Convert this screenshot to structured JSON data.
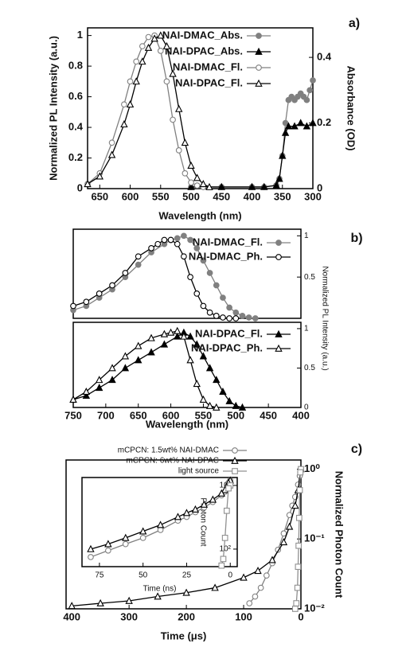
{
  "chart_data": [
    {
      "type": "line",
      "panel_label": "a)",
      "x_label": "Wavelength (nm)",
      "y_label": "Normalized PL Intensity (a.u.)",
      "y2_label": "Absorbance (OD)",
      "xlim": [
        670,
        300
      ],
      "xticks": [
        650,
        600,
        550,
        500,
        450,
        400,
        350,
        300
      ],
      "ylim": [
        0,
        1.05
      ],
      "yticks": [
        0.0,
        0.2,
        0.4,
        0.6,
        0.8,
        1.0
      ],
      "y2lim": [
        0,
        0.49
      ],
      "y2ticks": [
        0.0,
        0.2,
        0.4
      ],
      "series": [
        {
          "name": "NAI-DMAC_Abs.",
          "axis": "y2",
          "color": "#808080",
          "marker": "circle",
          "filled": true,
          "x": [
            300,
            305,
            310,
            315,
            320,
            325,
            330,
            335,
            340,
            345,
            350,
            355,
            360,
            380,
            400,
            450,
            500
          ],
          "values": [
            0.33,
            0.3,
            0.27,
            0.28,
            0.29,
            0.28,
            0.27,
            0.28,
            0.27,
            0.2,
            0.1,
            0.03,
            0.01,
            0.005,
            0.005,
            0.005,
            0.005
          ]
        },
        {
          "name": "NAI-DPAC_Abs.",
          "axis": "y2",
          "color": "#000000",
          "marker": "triangle",
          "filled": true,
          "x": [
            300,
            310,
            320,
            330,
            340,
            345,
            350,
            355,
            360,
            380,
            400,
            450,
            500
          ],
          "values": [
            0.2,
            0.19,
            0.2,
            0.19,
            0.19,
            0.17,
            0.1,
            0.03,
            0.01,
            0.005,
            0.005,
            0.005,
            0.005
          ]
        },
        {
          "name": "NAI-DMAC_Fl.",
          "color": "#808080",
          "marker": "circle",
          "filled": false,
          "x": [
            670,
            650,
            630,
            610,
            600,
            590,
            580,
            570,
            560,
            550,
            540,
            530,
            520,
            510,
            500,
            490,
            480
          ],
          "values": [
            0.03,
            0.1,
            0.3,
            0.55,
            0.7,
            0.83,
            0.93,
            0.99,
            1.0,
            0.9,
            0.7,
            0.45,
            0.25,
            0.1,
            0.04,
            0.02,
            0.01
          ]
        },
        {
          "name": "NAI-DPAC_Fl.",
          "color": "#000000",
          "marker": "triangle",
          "filled": false,
          "x": [
            670,
            650,
            630,
            610,
            600,
            590,
            580,
            570,
            560,
            550,
            540,
            530,
            520,
            510,
            500,
            490,
            480,
            470
          ],
          "values": [
            0.03,
            0.08,
            0.22,
            0.42,
            0.55,
            0.7,
            0.83,
            0.92,
            0.98,
            1.0,
            0.93,
            0.75,
            0.52,
            0.3,
            0.15,
            0.07,
            0.03,
            0.01
          ]
        }
      ]
    },
    {
      "type": "line",
      "panel_label": "b)",
      "y_label": "Normalized PL Intensity (a.u.)",
      "xlim": [
        750,
        400
      ],
      "ylim": [
        0,
        1.08
      ],
      "yticks": [
        0.5,
        1.0
      ],
      "series": [
        {
          "name": "NAI-DMAC_Fl.",
          "color": "#808080",
          "marker": "circle",
          "filled": true,
          "x": [
            750,
            730,
            710,
            690,
            670,
            650,
            630,
            610,
            600,
            590,
            580,
            570,
            560,
            550,
            540,
            530,
            520,
            510,
            500,
            490,
            480,
            470
          ],
          "values": [
            0.1,
            0.15,
            0.25,
            0.35,
            0.5,
            0.65,
            0.8,
            0.9,
            0.95,
            0.97,
            1.0,
            0.95,
            0.85,
            0.7,
            0.55,
            0.4,
            0.25,
            0.13,
            0.07,
            0.03,
            0.01,
            0.0
          ]
        },
        {
          "name": "NAI-DMAC_Ph.",
          "color": "#000000",
          "marker": "circle",
          "filled": false,
          "x": [
            750,
            730,
            710,
            690,
            670,
            650,
            630,
            620,
            610,
            600,
            590,
            580,
            570,
            560,
            550,
            540,
            530,
            520,
            510,
            500
          ],
          "values": [
            0.15,
            0.2,
            0.3,
            0.4,
            0.55,
            0.75,
            0.85,
            0.9,
            0.95,
            0.95,
            0.9,
            0.75,
            0.5,
            0.3,
            0.15,
            0.07,
            0.03,
            0.01,
            0.0,
            0.0
          ]
        }
      ]
    },
    {
      "type": "line",
      "x_label": "Wavelength (nm)",
      "xlim": [
        750,
        400
      ],
      "xticks": [
        750,
        700,
        650,
        600,
        550,
        500,
        450,
        400
      ],
      "ylim": [
        0,
        1.08
      ],
      "yticks": [
        0.0,
        0.5,
        1.0
      ],
      "series": [
        {
          "name": "NAI-DPAC_Fl.",
          "color": "#000000",
          "marker": "triangle",
          "filled": true,
          "x": [
            750,
            730,
            710,
            690,
            670,
            650,
            630,
            610,
            590,
            580,
            570,
            560,
            550,
            540,
            530,
            520,
            510,
            500,
            490
          ],
          "values": [
            0.1,
            0.15,
            0.25,
            0.35,
            0.5,
            0.6,
            0.7,
            0.8,
            0.9,
            0.95,
            0.9,
            0.8,
            0.65,
            0.5,
            0.35,
            0.2,
            0.08,
            0.02,
            0.0
          ]
        },
        {
          "name": "NAI-DPAC_Ph.",
          "color": "#000000",
          "marker": "triangle",
          "filled": false,
          "x": [
            750,
            730,
            710,
            690,
            670,
            650,
            630,
            610,
            600,
            590,
            580,
            570,
            560,
            550,
            540,
            530
          ],
          "values": [
            0.1,
            0.2,
            0.35,
            0.5,
            0.65,
            0.78,
            0.88,
            0.93,
            0.95,
            0.97,
            0.9,
            0.6,
            0.3,
            0.1,
            0.02,
            0.0
          ]
        }
      ]
    },
    {
      "type": "line",
      "panel_label": "c)",
      "x_label": "Time (μs)",
      "y_label": "Normalized Photon Count",
      "ylog": true,
      "xlim": [
        410,
        0
      ],
      "xticks": [
        400,
        300,
        200,
        100,
        0
      ],
      "ylim": [
        0.01,
        1.35
      ],
      "yticks": [
        {
          "value": 1,
          "label": "10⁰"
        },
        {
          "value": 0.1,
          "label": "10⁻¹"
        },
        {
          "value": 0.01,
          "label": "10⁻²"
        }
      ],
      "series": [
        {
          "name": "mCPCN: 1.5wt% NAI-DMAC",
          "color": "#808080",
          "marker": "circle",
          "filled": false,
          "x": [
            0,
            2,
            5,
            10,
            15,
            20,
            30,
            40,
            50,
            60,
            70,
            80,
            90
          ],
          "values": [
            1,
            0.8,
            0.6,
            0.4,
            0.3,
            0.22,
            0.12,
            0.07,
            0.045,
            0.03,
            0.02,
            0.015,
            0.012
          ]
        },
        {
          "name": "mCPCN: 6wt% NAI-DPAC",
          "color": "#000000",
          "marker": "triangle",
          "filled": false,
          "x": [
            0,
            5,
            10,
            20,
            30,
            50,
            75,
            100,
            150,
            200,
            250,
            300,
            350,
            400
          ],
          "values": [
            1,
            0.5,
            0.3,
            0.15,
            0.09,
            0.05,
            0.035,
            0.028,
            0.02,
            0.017,
            0.015,
            0.013,
            0.012,
            0.011
          ]
        },
        {
          "name": "light source",
          "color": "#909090",
          "marker": "square",
          "filled": false,
          "x": [
            0,
            1,
            2,
            3,
            4,
            5,
            6,
            8,
            10
          ],
          "values": [
            1,
            0.9,
            0.5,
            0.2,
            0.08,
            0.04,
            0.02,
            0.012,
            0.01
          ]
        }
      ]
    },
    {
      "type": "line",
      "x_label": "Time (ns)",
      "y_label": "Photon Count",
      "ylog": true,
      "xlim": [
        85,
        -4
      ],
      "xticks": [
        75,
        50,
        25,
        0
      ],
      "ylim": [
        53,
        1333
      ],
      "yticks": [
        {
          "value": 1000,
          "label": "10³"
        },
        {
          "value": 100,
          "label": "10²"
        }
      ],
      "series": [
        {
          "color": "#808080",
          "marker": "circle",
          "filled": false,
          "x": [
            0,
            1,
            2,
            3,
            5,
            10,
            15,
            20,
            25,
            30,
            40,
            50,
            60,
            70,
            80
          ],
          "values": [
            1200,
            1100,
            900,
            800,
            700,
            550,
            450,
            380,
            320,
            280,
            200,
            150,
            120,
            95,
            75
          ]
        },
        {
          "color": "#000000",
          "marker": "triangle",
          "filled": false,
          "x": [
            0,
            1,
            2,
            3,
            5,
            10,
            15,
            20,
            25,
            30,
            40,
            50,
            60,
            70,
            80
          ],
          "values": [
            1200,
            1100,
            950,
            850,
            750,
            600,
            500,
            420,
            370,
            320,
            240,
            190,
            150,
            120,
            100
          ]
        },
        {
          "color": "#909090",
          "marker": "square",
          "filled": false,
          "x": [
            0,
            1,
            2,
            3,
            4,
            5
          ],
          "values": [
            1000,
            900,
            400,
            150,
            70,
            55
          ]
        }
      ]
    }
  ]
}
